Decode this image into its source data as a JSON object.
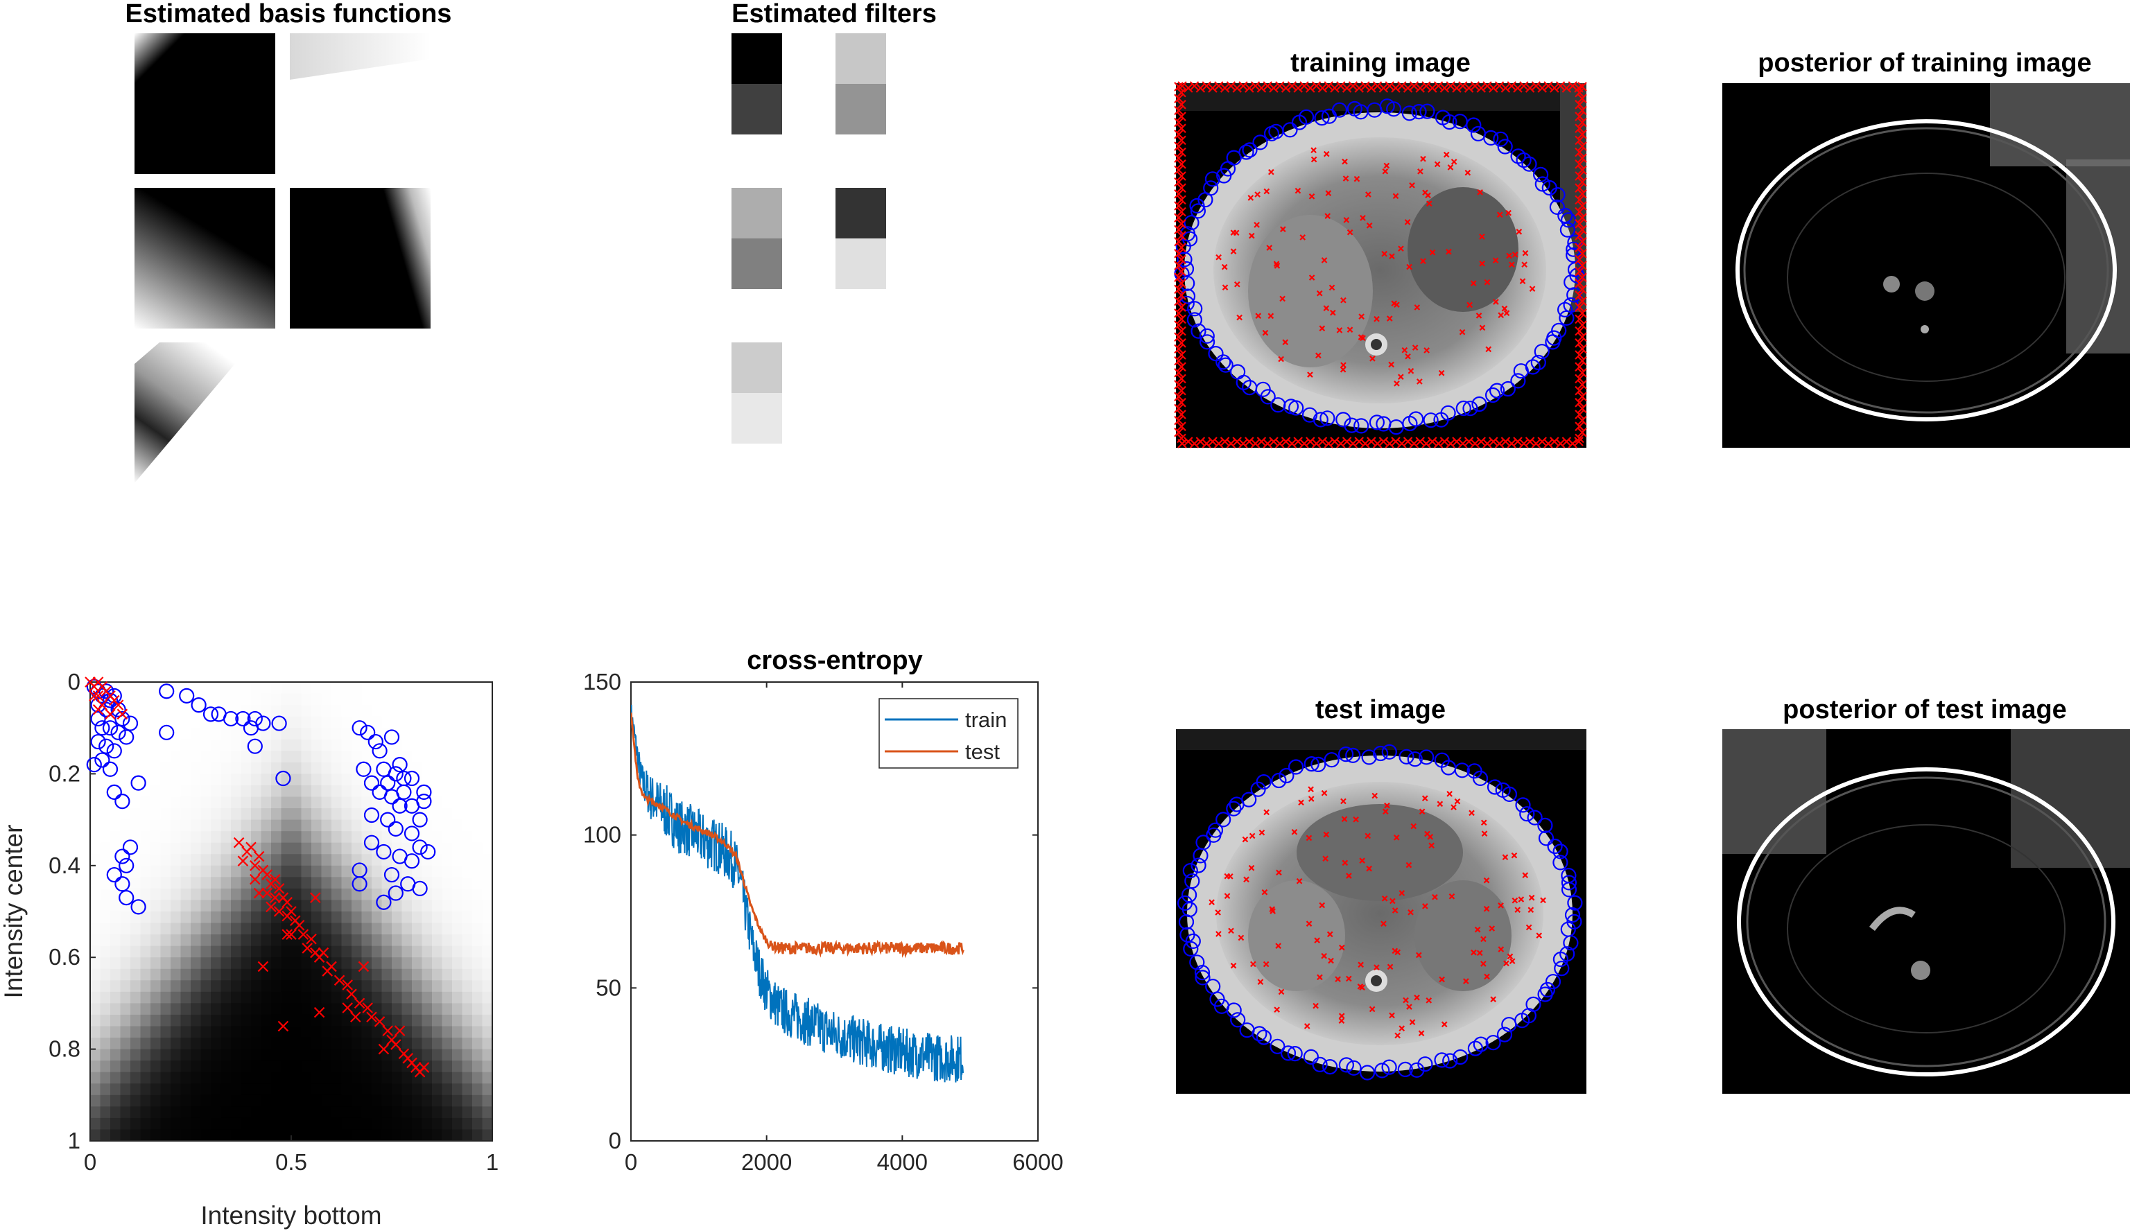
{
  "figure": {
    "basis_title": "Estimated basis functions",
    "filters_title": "Estimated filters",
    "training_title": "training image",
    "posterior_training_title": "posterior of training image",
    "test_title": "test image",
    "posterior_test_title": "posterior of test image"
  },
  "colors": {
    "positive_marker": "#0000ff",
    "negative_marker": "#ff0000",
    "train_line": "#0072bd",
    "test_line": "#d95319"
  },
  "filters": {
    "gray_levels": [
      [
        0.0,
        0.25
      ],
      [
        0.78,
        0.58
      ],
      [
        0.68,
        0.5
      ],
      [
        0.2,
        0.88
      ],
      [
        0.8,
        0.91
      ]
    ]
  },
  "chart_data": [
    {
      "type": "heatmap",
      "title": "",
      "xlabel": "Intensity bottom",
      "ylabel": "Intensity center",
      "xlim": [
        0,
        1
      ],
      "ylim": [
        0,
        1
      ],
      "y_reversed": true,
      "xticks": [
        "0",
        "0.5",
        "1"
      ],
      "yticks": [
        "0",
        "0.2",
        "0.4",
        "0.6",
        "0.8",
        "1"
      ],
      "series": [
        {
          "marker": "o",
          "points": [
            [
              0.01,
              0.01
            ],
            [
              0.02,
              0.02
            ],
            [
              0.03,
              0.03
            ],
            [
              0.04,
              0.02
            ],
            [
              0.05,
              0.04
            ],
            [
              0.06,
              0.03
            ],
            [
              0.02,
              0.05
            ],
            [
              0.04,
              0.06
            ],
            [
              0.07,
              0.06
            ],
            [
              0.08,
              0.08
            ],
            [
              0.1,
              0.09
            ],
            [
              0.02,
              0.08
            ],
            [
              0.03,
              0.1
            ],
            [
              0.05,
              0.1
            ],
            [
              0.07,
              0.11
            ],
            [
              0.09,
              0.12
            ],
            [
              0.02,
              0.13
            ],
            [
              0.04,
              0.14
            ],
            [
              0.06,
              0.15
            ],
            [
              0.03,
              0.17
            ],
            [
              0.05,
              0.19
            ],
            [
              0.01,
              0.18
            ],
            [
              0.12,
              0.22
            ],
            [
              0.06,
              0.24
            ],
            [
              0.08,
              0.26
            ],
            [
              0.19,
              0.02
            ],
            [
              0.24,
              0.03
            ],
            [
              0.27,
              0.05
            ],
            [
              0.3,
              0.07
            ],
            [
              0.32,
              0.07
            ],
            [
              0.35,
              0.08
            ],
            [
              0.38,
              0.08
            ],
            [
              0.41,
              0.08
            ],
            [
              0.43,
              0.09
            ],
            [
              0.47,
              0.09
            ],
            [
              0.4,
              0.1
            ],
            [
              0.19,
              0.11
            ],
            [
              0.41,
              0.14
            ],
            [
              0.48,
              0.21
            ],
            [
              0.1,
              0.36
            ],
            [
              0.08,
              0.38
            ],
            [
              0.09,
              0.4
            ],
            [
              0.06,
              0.42
            ],
            [
              0.08,
              0.44
            ],
            [
              0.09,
              0.47
            ],
            [
              0.12,
              0.49
            ],
            [
              0.67,
              0.1
            ],
            [
              0.69,
              0.11
            ],
            [
              0.71,
              0.13
            ],
            [
              0.75,
              0.12
            ],
            [
              0.72,
              0.15
            ],
            [
              0.68,
              0.19
            ],
            [
              0.73,
              0.19
            ],
            [
              0.77,
              0.18
            ],
            [
              0.76,
              0.2
            ],
            [
              0.78,
              0.21
            ],
            [
              0.7,
              0.22
            ],
            [
              0.74,
              0.22
            ],
            [
              0.8,
              0.21
            ],
            [
              0.72,
              0.24
            ],
            [
              0.75,
              0.25
            ],
            [
              0.78,
              0.24
            ],
            [
              0.83,
              0.24
            ],
            [
              0.77,
              0.27
            ],
            [
              0.8,
              0.27
            ],
            [
              0.83,
              0.26
            ],
            [
              0.7,
              0.29
            ],
            [
              0.74,
              0.3
            ],
            [
              0.82,
              0.3
            ],
            [
              0.76,
              0.32
            ],
            [
              0.8,
              0.33
            ],
            [
              0.7,
              0.35
            ],
            [
              0.73,
              0.37
            ],
            [
              0.82,
              0.36
            ],
            [
              0.84,
              0.37
            ],
            [
              0.77,
              0.38
            ],
            [
              0.8,
              0.39
            ],
            [
              0.67,
              0.41
            ],
            [
              0.75,
              0.42
            ],
            [
              0.79,
              0.44
            ],
            [
              0.67,
              0.44
            ],
            [
              0.76,
              0.46
            ],
            [
              0.82,
              0.45
            ],
            [
              0.73,
              0.48
            ]
          ]
        },
        {
          "marker": "x",
          "points": [
            [
              0.0,
              0.0
            ],
            [
              0.01,
              0.01
            ],
            [
              0.02,
              0.0
            ],
            [
              0.03,
              0.01
            ],
            [
              0.01,
              0.03
            ],
            [
              0.02,
              0.03
            ],
            [
              0.04,
              0.02
            ],
            [
              0.05,
              0.03
            ],
            [
              0.03,
              0.05
            ],
            [
              0.06,
              0.04
            ],
            [
              0.07,
              0.05
            ],
            [
              0.02,
              0.06
            ],
            [
              0.05,
              0.07
            ],
            [
              0.08,
              0.07
            ],
            [
              0.37,
              0.35
            ],
            [
              0.39,
              0.37
            ],
            [
              0.4,
              0.36
            ],
            [
              0.38,
              0.39
            ],
            [
              0.41,
              0.4
            ],
            [
              0.42,
              0.38
            ],
            [
              0.43,
              0.41
            ],
            [
              0.41,
              0.43
            ],
            [
              0.44,
              0.42
            ],
            [
              0.45,
              0.44
            ],
            [
              0.46,
              0.43
            ],
            [
              0.47,
              0.45
            ],
            [
              0.44,
              0.46
            ],
            [
              0.46,
              0.47
            ],
            [
              0.48,
              0.47
            ],
            [
              0.49,
              0.48
            ],
            [
              0.47,
              0.5
            ],
            [
              0.49,
              0.51
            ],
            [
              0.5,
              0.5
            ],
            [
              0.51,
              0.52
            ],
            [
              0.52,
              0.53
            ],
            [
              0.5,
              0.55
            ],
            [
              0.53,
              0.55
            ],
            [
              0.55,
              0.56
            ],
            [
              0.54,
              0.58
            ],
            [
              0.56,
              0.59
            ],
            [
              0.57,
              0.6
            ],
            [
              0.58,
              0.59
            ],
            [
              0.6,
              0.62
            ],
            [
              0.59,
              0.63
            ],
            [
              0.42,
              0.46
            ],
            [
              0.45,
              0.49
            ],
            [
              0.56,
              0.47
            ],
            [
              0.49,
              0.55
            ],
            [
              0.43,
              0.62
            ],
            [
              0.62,
              0.65
            ],
            [
              0.64,
              0.66
            ],
            [
              0.68,
              0.62
            ],
            [
              0.65,
              0.68
            ],
            [
              0.67,
              0.7
            ],
            [
              0.69,
              0.71
            ],
            [
              0.7,
              0.73
            ],
            [
              0.72,
              0.74
            ],
            [
              0.74,
              0.76
            ],
            [
              0.75,
              0.78
            ],
            [
              0.76,
              0.79
            ],
            [
              0.78,
              0.81
            ],
            [
              0.79,
              0.82
            ],
            [
              0.8,
              0.83
            ],
            [
              0.81,
              0.84
            ],
            [
              0.83,
              0.84
            ],
            [
              0.82,
              0.85
            ],
            [
              0.64,
              0.71
            ],
            [
              0.66,
              0.73
            ],
            [
              0.57,
              0.72
            ],
            [
              0.48,
              0.75
            ],
            [
              0.77,
              0.76
            ],
            [
              0.73,
              0.8
            ]
          ]
        }
      ]
    },
    {
      "type": "line",
      "title": "cross-entropy",
      "xlabel": "",
      "ylabel": "",
      "xlim": [
        0,
        6000
      ],
      "ylim": [
        0,
        150
      ],
      "xticks": [
        "0",
        "2000",
        "4000",
        "6000"
      ],
      "yticks": [
        "0",
        "50",
        "100",
        "150"
      ],
      "legend": "top-right",
      "series": [
        {
          "name": "train",
          "x": [
            0,
            150,
            300,
            500,
            700,
            900,
            1100,
            1300,
            1500,
            1600,
            1700,
            1800,
            1900,
            2000,
            2200,
            2500,
            2800,
            3000,
            3300,
            3600,
            4000,
            4300,
            4600,
            4900
          ],
          "y": [
            140,
            118,
            112,
            108,
            103,
            101,
            98,
            96,
            92,
            86,
            74,
            63,
            55,
            49,
            43,
            40,
            37,
            35,
            33,
            31,
            29,
            28,
            27,
            27
          ],
          "noise": [
            4,
            6,
            8,
            9,
            9,
            9,
            9,
            9,
            9,
            9,
            8,
            8,
            8,
            8,
            8,
            8,
            8,
            8,
            8,
            8,
            8,
            8,
            8,
            8
          ]
        },
        {
          "name": "test",
          "x": [
            0,
            100,
            200,
            400,
            600,
            800,
            1000,
            1200,
            1400,
            1550,
            1650,
            1750,
            1850,
            1950,
            2050,
            2200,
            2400,
            2700,
            3000,
            3500,
            4000,
            4500,
            4900
          ],
          "y": [
            140,
            118,
            112,
            110,
            107,
            104,
            102,
            100,
            97,
            93,
            86,
            78,
            72,
            67,
            64,
            63,
            63,
            63,
            63,
            63,
            63,
            63,
            63
          ],
          "noise": [
            0,
            1,
            1,
            1,
            1,
            1,
            1,
            1,
            1,
            1,
            1,
            1,
            1,
            1,
            1.5,
            2,
            2,
            2,
            2,
            2,
            2,
            2,
            2
          ]
        }
      ]
    }
  ]
}
